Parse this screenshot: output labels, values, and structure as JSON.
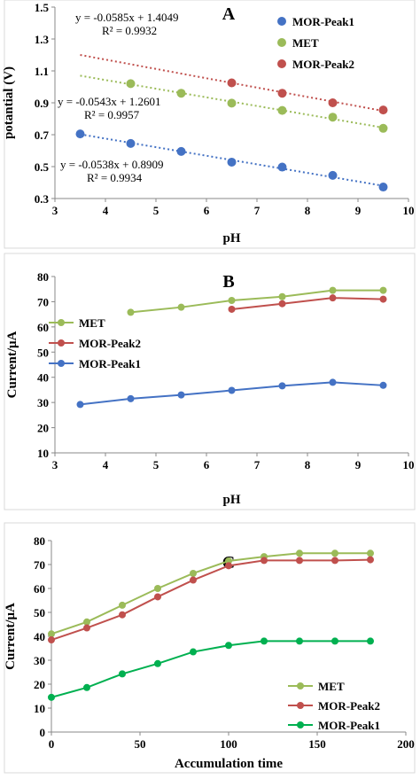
{
  "chart_data": [
    {
      "panel": "A",
      "type": "scatter",
      "xlabel": "pH",
      "ylabel": "potantial (V)",
      "xlim": [
        3,
        10
      ],
      "ylim": [
        0.3,
        1.5
      ],
      "xticks": [
        "3",
        "4",
        "5",
        "6",
        "7",
        "8",
        "9",
        "10"
      ],
      "yticks": [
        "0.3",
        "0.5",
        "0.7",
        "0.9",
        "1.1",
        "1.3",
        "1.5"
      ],
      "legend_position": "top-right",
      "series": [
        {
          "name": "MOR-Peak1",
          "color": "#4472c4",
          "x": [
            3.5,
            4.5,
            5.5,
            6.5,
            7.5,
            8.5,
            9.5
          ],
          "y": [
            0.705,
            0.645,
            0.595,
            0.528,
            0.497,
            0.445,
            0.372
          ],
          "trendline": {
            "slope": -0.0538,
            "intercept": 0.8909
          },
          "equation": "y = -0.0538x  + 0.8909",
          "r2": "R² = 0.9934"
        },
        {
          "name": "MET",
          "color": "#9bbb59",
          "x": [
            4.5,
            5.5,
            6.5,
            7.5,
            8.5,
            9.5
          ],
          "y": [
            1.02,
            0.96,
            0.898,
            0.852,
            0.81,
            0.74
          ],
          "trendline": {
            "slope": -0.0543,
            "intercept": 1.2601
          },
          "equation": "y = -0.0543x  + 1.2601",
          "r2": "R² = 0.9957"
        },
        {
          "name": "MOR-Peak2",
          "color": "#c0504d",
          "x": [
            6.5,
            7.5,
            8.5,
            9.5
          ],
          "y": [
            1.025,
            0.96,
            0.9,
            0.855
          ],
          "trendline": {
            "slope": -0.0585,
            "intercept": 1.4049
          },
          "equation": "y = -0.0585x  + 1.4049",
          "r2": "R² = 0.9932"
        }
      ]
    },
    {
      "panel": "B",
      "type": "line",
      "xlabel": "pH",
      "ylabel": "Current/μA",
      "xlim": [
        3,
        10
      ],
      "ylim": [
        10,
        80
      ],
      "xticks": [
        "3",
        "4",
        "5",
        "6",
        "7",
        "8",
        "9",
        "10"
      ],
      "yticks": [
        "10",
        "20",
        "30",
        "40",
        "50",
        "60",
        "70",
        "80"
      ],
      "legend_position": "middle-left",
      "series": [
        {
          "name": "MET",
          "color": "#9bbb59",
          "x": [
            4.5,
            5.5,
            6.5,
            7.5,
            8.5,
            9.5
          ],
          "y": [
            65.8,
            67.8,
            70.5,
            72.0,
            74.5,
            74.5
          ]
        },
        {
          "name": "MOR-Peak2",
          "color": "#c0504d",
          "x": [
            6.5,
            7.5,
            8.5,
            9.5
          ],
          "y": [
            67.0,
            69.2,
            71.5,
            71.0
          ]
        },
        {
          "name": "MOR-Peak1",
          "color": "#4472c4",
          "x": [
            3.5,
            4.5,
            5.5,
            6.5,
            7.5,
            8.5,
            9.5
          ],
          "y": [
            29.2,
            31.5,
            33.0,
            34.8,
            36.6,
            38.0,
            36.8
          ]
        }
      ]
    },
    {
      "panel": "C",
      "type": "line",
      "xlabel": "Accumulation  time",
      "ylabel": "Current/μA",
      "xlim": [
        0,
        200
      ],
      "ylim": [
        0,
        80
      ],
      "xticks": [
        "0",
        "50",
        "100",
        "150",
        "200"
      ],
      "yticks": [
        "0",
        "10",
        "20",
        "30",
        "40",
        "50",
        "60",
        "70",
        "80"
      ],
      "legend_position": "bottom-right",
      "series": [
        {
          "name": "MET",
          "color": "#9bbb59",
          "x": [
            0,
            20,
            40,
            60,
            80,
            100,
            120,
            140,
            160,
            180
          ],
          "y": [
            41.0,
            46.0,
            53.0,
            60.0,
            66.3,
            71.5,
            73.3,
            74.7,
            74.7,
            74.7
          ]
        },
        {
          "name": "MOR-Peak2",
          "color": "#c0504d",
          "x": [
            0,
            20,
            40,
            60,
            80,
            100,
            120,
            140,
            160,
            180
          ],
          "y": [
            38.5,
            43.5,
            49.0,
            56.5,
            63.5,
            69.5,
            71.7,
            71.7,
            71.7,
            72.0
          ]
        },
        {
          "name": "MOR-Peak1",
          "color": "#00b050",
          "x": [
            0,
            20,
            40,
            60,
            80,
            100,
            120,
            140,
            160,
            180
          ],
          "y": [
            14.5,
            18.6,
            24.3,
            28.6,
            33.5,
            36.2,
            38.0,
            38.0,
            38.0,
            38.0
          ]
        }
      ]
    }
  ]
}
